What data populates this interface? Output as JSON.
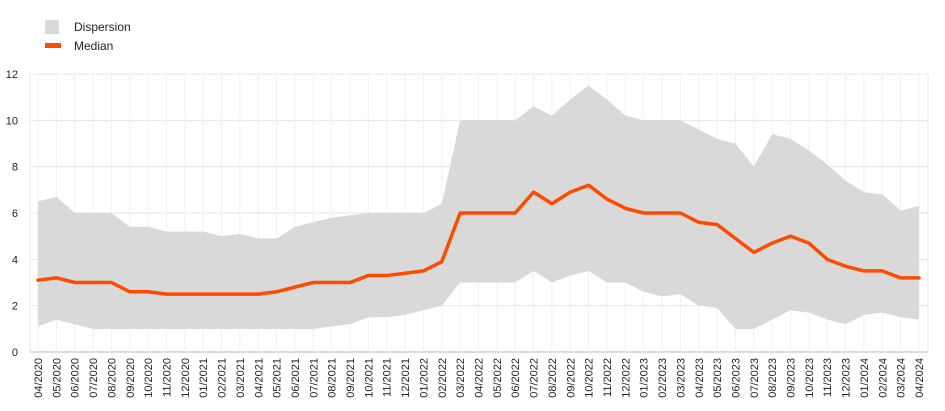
{
  "chart_data": {
    "type": "area",
    "title": "",
    "xlabel": "",
    "ylabel": "",
    "ylim": [
      0,
      12
    ],
    "yticks": [
      "0",
      "2",
      "4",
      "6",
      "8",
      "10",
      "12"
    ],
    "grid": true,
    "legend_position": "top-left",
    "categories": [
      "04/2020",
      "05/2020",
      "06/2020",
      "07/2020",
      "08/2020",
      "09/2020",
      "10/2020",
      "11/2020",
      "12/2020",
      "01/2021",
      "02/2021",
      "03/2021",
      "04/2021",
      "05/2021",
      "06/2021",
      "07/2021",
      "08/2021",
      "09/2021",
      "10/2021",
      "11/2021",
      "12/2021",
      "01/2022",
      "02/2022",
      "03/2022",
      "04/2022",
      "05/2022",
      "06/2022",
      "07/2022",
      "08/2022",
      "09/2022",
      "10/2022",
      "11/2022",
      "12/2022",
      "01/2023",
      "02/2023",
      "03/2023",
      "04/2023",
      "05/2023",
      "06/2023",
      "07/2023",
      "08/2023",
      "09/2023",
      "10/2023",
      "11/2023",
      "12/2023",
      "01/2024",
      "02/2024",
      "03/2024",
      "04/2024"
    ],
    "series": [
      {
        "name": "Dispersion",
        "kind": "band",
        "color": "#d9d9d9",
        "lower": [
          1.1,
          1.4,
          1.2,
          1.0,
          1.0,
          1.0,
          1.0,
          1.0,
          1.0,
          1.0,
          1.0,
          1.0,
          1.0,
          1.0,
          1.0,
          1.0,
          1.1,
          1.2,
          1.5,
          1.5,
          1.6,
          1.8,
          2.0,
          3.0,
          3.0,
          3.0,
          3.0,
          3.5,
          3.0,
          3.3,
          3.5,
          3.0,
          3.0,
          2.6,
          2.4,
          2.5,
          2.0,
          1.9,
          1.0,
          1.0,
          1.4,
          1.8,
          1.7,
          1.4,
          1.2,
          1.6,
          1.7,
          1.5,
          1.4
        ],
        "upper": [
          6.5,
          6.7,
          6.0,
          6.0,
          6.0,
          5.4,
          5.4,
          5.2,
          5.2,
          5.2,
          5.0,
          5.1,
          4.9,
          4.9,
          5.4,
          5.6,
          5.8,
          5.9,
          6.0,
          6.0,
          6.0,
          6.0,
          6.4,
          10.0,
          10.0,
          10.0,
          10.0,
          10.6,
          10.2,
          10.9,
          11.5,
          10.9,
          10.2,
          10.0,
          10.0,
          10.0,
          9.6,
          9.2,
          9.0,
          8.0,
          9.4,
          9.2,
          8.7,
          8.1,
          7.4,
          6.9,
          6.8,
          6.1,
          6.3
        ]
      },
      {
        "name": "Median",
        "kind": "line",
        "color": "#ff4b00",
        "values": [
          3.1,
          3.2,
          3.0,
          3.0,
          3.0,
          2.6,
          2.6,
          2.5,
          2.5,
          2.5,
          2.5,
          2.5,
          2.5,
          2.6,
          2.8,
          3.0,
          3.0,
          3.0,
          3.3,
          3.3,
          3.4,
          3.5,
          3.9,
          6.0,
          6.0,
          6.0,
          6.0,
          6.9,
          6.4,
          6.9,
          7.2,
          6.6,
          6.2,
          6.0,
          6.0,
          6.0,
          5.6,
          5.5,
          4.9,
          4.3,
          4.7,
          5.0,
          4.7,
          4.0,
          3.7,
          3.5,
          3.5,
          3.2,
          3.2
        ]
      }
    ]
  },
  "legend": {
    "dispersion_label": "Dispersion",
    "median_label": "Median"
  }
}
